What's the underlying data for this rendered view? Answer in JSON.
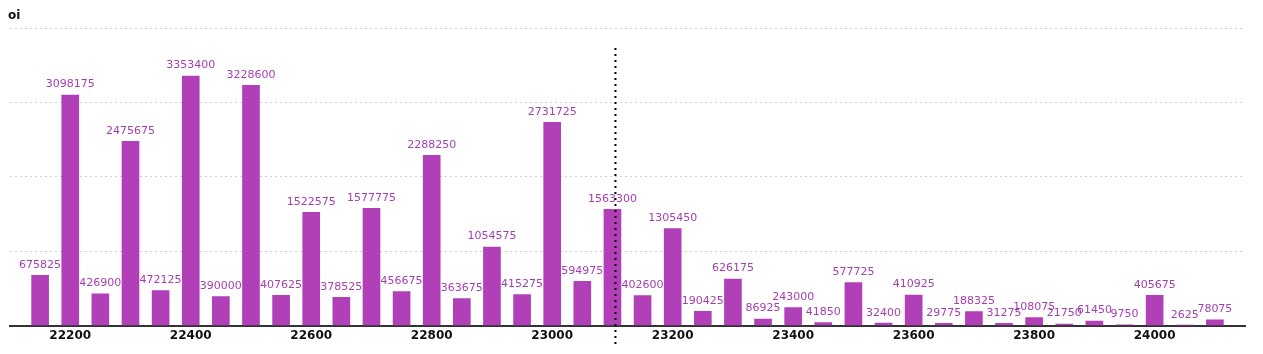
{
  "chart_data": {
    "type": "bar",
    "ylabel": "oi",
    "x": [
      22150,
      22200,
      22250,
      22300,
      22350,
      22400,
      22450,
      22500,
      22550,
      22600,
      22650,
      22700,
      22750,
      22800,
      22850,
      22900,
      22950,
      23000,
      23050,
      23100,
      23150,
      23200,
      23250,
      23300,
      23350,
      23400,
      23450,
      23500,
      23550,
      23600,
      23650,
      23700,
      23750,
      23800,
      23850,
      23900,
      23950,
      24000,
      24050,
      24100
    ],
    "series": [
      {
        "color": "#b03fb8",
        "values": [
          675825,
          3098175,
          426900,
          2475675,
          472125,
          3353400,
          390000,
          3228600,
          407625,
          1522575,
          378525,
          1577775,
          456675,
          2288250,
          363675,
          1054575,
          415275,
          2731725,
          594975,
          1563300,
          402600,
          1305450,
          190425,
          626175,
          86925,
          243000,
          41850,
          577725,
          32400,
          410925,
          29775,
          188325,
          31275,
          108075,
          21750,
          61450,
          9750,
          405675,
          2625,
          78075
        ]
      }
    ],
    "data_labels": true,
    "xlim": [
      22100,
      24150
    ],
    "xticks": [
      22200,
      22400,
      22600,
      22800,
      23000,
      23200,
      23400,
      23600,
      23800,
      24000
    ],
    "tick_labels": "x",
    "grid": "y",
    "legend": false,
    "ref_lines": [
      {
        "axis": "x",
        "value": 23105,
        "color": "#000000",
        "line_style": "dotted"
      }
    ]
  }
}
